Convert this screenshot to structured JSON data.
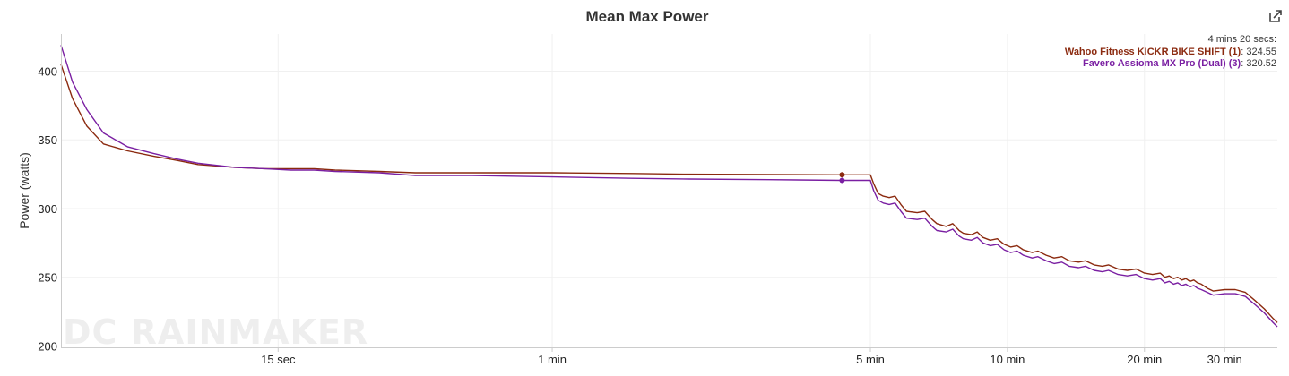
{
  "chart_data": {
    "type": "line",
    "title": "Mean Max Power",
    "xlabel": "",
    "ylabel": "Power (watts)",
    "x_scale": "log",
    "x_unit": "seconds",
    "xlim": [
      5,
      2350
    ],
    "ylim": [
      199,
      427
    ],
    "grid": true,
    "y_ticks": [
      200,
      250,
      300,
      350,
      400
    ],
    "x_ticks": [
      {
        "value": 15,
        "label": "15 sec"
      },
      {
        "value": 60,
        "label": "1 min"
      },
      {
        "value": 300,
        "label": "5 min"
      },
      {
        "value": 600,
        "label": "10 min"
      },
      {
        "value": 1200,
        "label": "20 min"
      },
      {
        "value": 1800,
        "label": "30 min"
      }
    ],
    "legend_position": "top-right",
    "marker": {
      "x": 260,
      "label": "4 mins 20 secs:"
    },
    "series": [
      {
        "name": "Wahoo Fitness KICKR BIKE SHIFT (1)",
        "color": "#8b2a0f",
        "marker_value": "324.55",
        "points": [
          [
            5,
            405
          ],
          [
            5.3,
            380
          ],
          [
            5.7,
            360
          ],
          [
            6.2,
            347
          ],
          [
            7,
            342
          ],
          [
            8,
            338
          ],
          [
            9,
            335
          ],
          [
            10,
            332
          ],
          [
            12,
            330
          ],
          [
            14,
            329
          ],
          [
            16,
            329
          ],
          [
            18,
            329
          ],
          [
            20,
            328
          ],
          [
            25,
            327
          ],
          [
            30,
            326
          ],
          [
            40,
            326
          ],
          [
            60,
            326
          ],
          [
            90,
            325.5
          ],
          [
            120,
            325
          ],
          [
            180,
            324.8
          ],
          [
            260,
            324.55
          ],
          [
            300,
            324.5
          ],
          [
            305,
            318
          ],
          [
            312,
            311
          ],
          [
            320,
            309
          ],
          [
            330,
            308
          ],
          [
            340,
            309
          ],
          [
            350,
            303
          ],
          [
            360,
            298
          ],
          [
            380,
            297
          ],
          [
            395,
            298
          ],
          [
            410,
            292
          ],
          [
            420,
            289
          ],
          [
            440,
            287
          ],
          [
            455,
            289
          ],
          [
            470,
            284
          ],
          [
            480,
            282
          ],
          [
            500,
            281
          ],
          [
            515,
            283
          ],
          [
            530,
            279
          ],
          [
            550,
            277
          ],
          [
            570,
            278
          ],
          [
            590,
            274
          ],
          [
            610,
            272
          ],
          [
            630,
            273
          ],
          [
            650,
            270
          ],
          [
            680,
            268
          ],
          [
            700,
            269
          ],
          [
            730,
            266
          ],
          [
            760,
            264
          ],
          [
            790,
            265
          ],
          [
            820,
            262
          ],
          [
            860,
            261
          ],
          [
            890,
            262
          ],
          [
            930,
            259
          ],
          [
            970,
            258
          ],
          [
            1000,
            259
          ],
          [
            1050,
            256
          ],
          [
            1100,
            255
          ],
          [
            1150,
            256
          ],
          [
            1200,
            253
          ],
          [
            1250,
            252
          ],
          [
            1300,
            253
          ],
          [
            1330,
            250
          ],
          [
            1360,
            251
          ],
          [
            1390,
            249
          ],
          [
            1420,
            250
          ],
          [
            1450,
            248
          ],
          [
            1480,
            249
          ],
          [
            1510,
            247
          ],
          [
            1540,
            248
          ],
          [
            1570,
            246
          ],
          [
            1600,
            245
          ],
          [
            1650,
            242
          ],
          [
            1700,
            240
          ],
          [
            1800,
            241
          ],
          [
            1900,
            241
          ],
          [
            2000,
            239
          ],
          [
            2100,
            233
          ],
          [
            2200,
            227
          ],
          [
            2300,
            220
          ],
          [
            2350,
            217
          ]
        ]
      },
      {
        "name": "Favero Assioma MX Pro (Dual) (3)",
        "color": "#7a1fa2",
        "marker_value": "320.52",
        "points": [
          [
            5,
            419
          ],
          [
            5.3,
            392
          ],
          [
            5.7,
            372
          ],
          [
            6.2,
            355
          ],
          [
            7,
            345
          ],
          [
            8,
            340
          ],
          [
            9,
            336
          ],
          [
            10,
            333
          ],
          [
            12,
            330
          ],
          [
            14,
            329
          ],
          [
            16,
            328
          ],
          [
            18,
            328
          ],
          [
            20,
            327
          ],
          [
            25,
            326
          ],
          [
            30,
            324
          ],
          [
            40,
            324
          ],
          [
            60,
            323
          ],
          [
            90,
            322
          ],
          [
            120,
            321.5
          ],
          [
            180,
            321
          ],
          [
            260,
            320.52
          ],
          [
            300,
            320.5
          ],
          [
            305,
            313
          ],
          [
            312,
            306
          ],
          [
            320,
            304
          ],
          [
            330,
            303
          ],
          [
            340,
            304
          ],
          [
            350,
            298
          ],
          [
            360,
            293
          ],
          [
            380,
            292
          ],
          [
            395,
            293
          ],
          [
            410,
            287
          ],
          [
            420,
            284
          ],
          [
            440,
            283
          ],
          [
            455,
            285
          ],
          [
            470,
            280
          ],
          [
            480,
            278
          ],
          [
            500,
            277
          ],
          [
            515,
            279
          ],
          [
            530,
            275
          ],
          [
            550,
            273
          ],
          [
            570,
            274
          ],
          [
            590,
            270
          ],
          [
            610,
            268
          ],
          [
            630,
            269
          ],
          [
            650,
            266
          ],
          [
            680,
            264
          ],
          [
            700,
            265
          ],
          [
            730,
            262
          ],
          [
            760,
            260
          ],
          [
            790,
            261
          ],
          [
            820,
            258
          ],
          [
            860,
            257
          ],
          [
            890,
            258
          ],
          [
            930,
            255
          ],
          [
            970,
            254
          ],
          [
            1000,
            255
          ],
          [
            1050,
            252
          ],
          [
            1100,
            251
          ],
          [
            1150,
            252
          ],
          [
            1200,
            249
          ],
          [
            1250,
            248
          ],
          [
            1300,
            249
          ],
          [
            1330,
            246
          ],
          [
            1360,
            247
          ],
          [
            1390,
            245
          ],
          [
            1420,
            246
          ],
          [
            1450,
            244
          ],
          [
            1480,
            245
          ],
          [
            1510,
            243
          ],
          [
            1540,
            244
          ],
          [
            1570,
            242
          ],
          [
            1600,
            241
          ],
          [
            1650,
            239
          ],
          [
            1700,
            237
          ],
          [
            1800,
            238
          ],
          [
            1900,
            238
          ],
          [
            2000,
            236
          ],
          [
            2100,
            230
          ],
          [
            2200,
            224
          ],
          [
            2300,
            217
          ],
          [
            2350,
            214
          ]
        ]
      }
    ],
    "watermark": "DC RAINMAKER"
  },
  "toolbar": {
    "export_icon": "external-link-icon"
  }
}
